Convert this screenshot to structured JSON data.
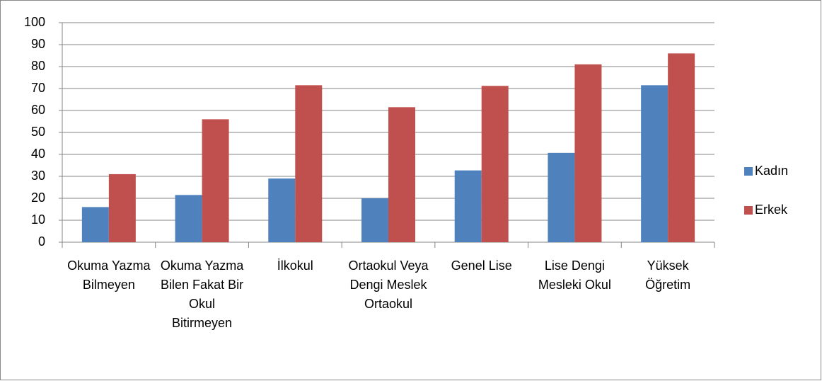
{
  "chart_data": {
    "type": "bar",
    "categories": [
      "Okuma Yazma Bilmeyen",
      "Okuma Yazma Bilen Fakat Bir Okul Bitirmeyen",
      "İlkokul",
      "Ortaokul Veya Dengi Meslek Ortaokul",
      "Genel Lise",
      "Lise Dengi Mesleki Okul",
      "Yüksek Öğretim"
    ],
    "series": [
      {
        "name": "Kadın",
        "color": "#4f81bd",
        "values": [
          16,
          21.5,
          29,
          20,
          32.7,
          40.7,
          71.5
        ]
      },
      {
        "name": "Erkek",
        "color": "#c0504d",
        "values": [
          31,
          56,
          71.5,
          61.5,
          71.2,
          81,
          86
        ]
      }
    ],
    "ylim": [
      0,
      100
    ],
    "yticks": [
      0,
      10,
      20,
      30,
      40,
      50,
      60,
      70,
      80,
      90,
      100
    ],
    "grid": true,
    "legend": "right"
  }
}
